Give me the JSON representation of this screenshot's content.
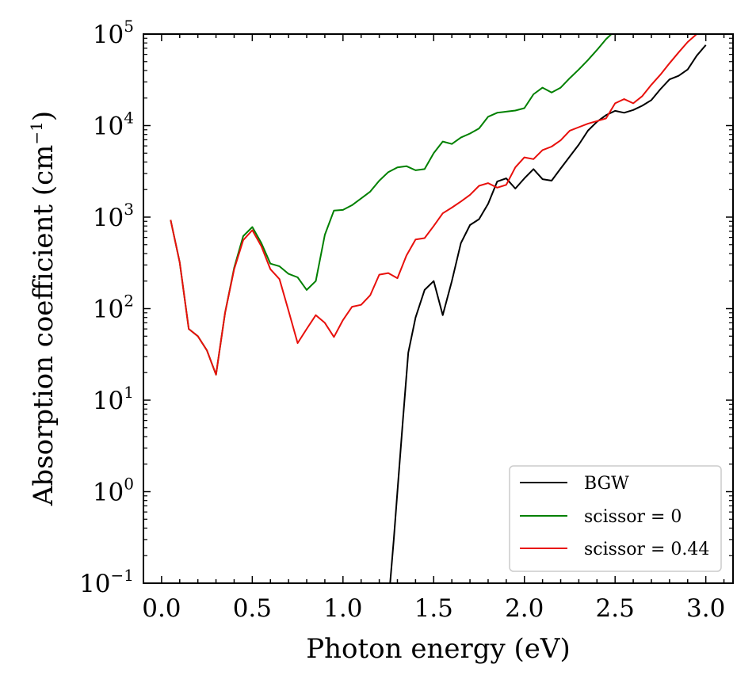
{
  "chart_data": {
    "type": "line",
    "xlabel": "Photon energy (eV)",
    "ylabel_main": "Absorption coefficient (cm",
    "ylabel_exp": "−1",
    "ylabel_close": ")",
    "xlim": [
      -0.1,
      3.15
    ],
    "ylim_log10": [
      -1,
      5
    ],
    "x_ticks": [
      {
        "value": 0.0,
        "label": "0.0"
      },
      {
        "value": 0.5,
        "label": "0.5"
      },
      {
        "value": 1.0,
        "label": "1.0"
      },
      {
        "value": 1.5,
        "label": "1.5"
      },
      {
        "value": 2.0,
        "label": "2.0"
      },
      {
        "value": 2.5,
        "label": "2.5"
      },
      {
        "value": 3.0,
        "label": "3.0"
      }
    ],
    "y_ticks": [
      {
        "exp": -1,
        "base": "10",
        "power": "−1"
      },
      {
        "exp": 0,
        "base": "10",
        "power": "0"
      },
      {
        "exp": 1,
        "base": "10",
        "power": "1"
      },
      {
        "exp": 2,
        "base": "10",
        "power": "2"
      },
      {
        "exp": 3,
        "base": "10",
        "power": "3"
      },
      {
        "exp": 4,
        "base": "10",
        "power": "4"
      },
      {
        "exp": 5,
        "base": "10",
        "power": "5"
      }
    ],
    "legend_position": "lower-right",
    "series": [
      {
        "name": "BGW",
        "color": "#000000",
        "x": [
          1.26,
          1.28,
          1.3,
          1.33,
          1.36,
          1.4,
          1.45,
          1.5,
          1.55,
          1.6,
          1.65,
          1.7,
          1.75,
          1.8,
          1.85,
          1.9,
          1.95,
          2.0,
          2.05,
          2.1,
          2.15,
          2.2,
          2.25,
          2.3,
          2.35,
          2.4,
          2.45,
          2.5,
          2.55,
          2.6,
          2.65,
          2.7,
          2.75,
          2.8,
          2.85,
          2.9,
          2.95,
          3.0
        ],
        "y": [
          0.1,
          0.3,
          1.0,
          6.0,
          33,
          80,
          160,
          200,
          85,
          200,
          520,
          820,
          950,
          1400,
          2450,
          2650,
          2050,
          2650,
          3350,
          2600,
          2500,
          3400,
          4600,
          6200,
          8800,
          11000,
          13000,
          14500,
          13800,
          14800,
          16500,
          19000,
          25000,
          32000,
          35000,
          41000,
          58000,
          76000
        ]
      },
      {
        "name": "scissor = 0",
        "color": "#008000",
        "x": [
          0.05,
          0.1,
          0.15,
          0.2,
          0.25,
          0.3,
          0.35,
          0.4,
          0.45,
          0.5,
          0.55,
          0.6,
          0.65,
          0.7,
          0.75,
          0.8,
          0.85,
          0.9,
          0.95,
          1.0,
          1.05,
          1.1,
          1.15,
          1.2,
          1.25,
          1.3,
          1.35,
          1.4,
          1.45,
          1.5,
          1.55,
          1.6,
          1.65,
          1.7,
          1.75,
          1.8,
          1.85,
          1.9,
          1.95,
          2.0,
          2.05,
          2.1,
          2.15,
          2.2,
          2.25,
          2.3,
          2.35,
          2.4,
          2.45,
          2.48
        ],
        "y": [
          930,
          320,
          60,
          50,
          35,
          19,
          90,
          280,
          620,
          780,
          520,
          310,
          290,
          240,
          220,
          160,
          200,
          640,
          1180,
          1200,
          1350,
          1600,
          1900,
          2500,
          3100,
          3500,
          3600,
          3250,
          3350,
          5000,
          6700,
          6300,
          7400,
          8200,
          9300,
          12500,
          13800,
          14200,
          14600,
          15500,
          22000,
          26000,
          23000,
          26000,
          33000,
          41000,
          52000,
          67000,
          88000,
          100000
        ]
      },
      {
        "name": "scissor = 0.44",
        "color": "#e8100c",
        "x": [
          0.05,
          0.1,
          0.15,
          0.2,
          0.25,
          0.3,
          0.35,
          0.4,
          0.45,
          0.5,
          0.55,
          0.6,
          0.65,
          0.7,
          0.75,
          0.8,
          0.85,
          0.9,
          0.95,
          1.0,
          1.05,
          1.1,
          1.15,
          1.2,
          1.25,
          1.3,
          1.35,
          1.4,
          1.45,
          1.5,
          1.55,
          1.6,
          1.65,
          1.7,
          1.75,
          1.8,
          1.85,
          1.9,
          1.95,
          2.0,
          2.05,
          2.1,
          2.15,
          2.2,
          2.25,
          2.3,
          2.35,
          2.4,
          2.45,
          2.5,
          2.55,
          2.6,
          2.65,
          2.7,
          2.75,
          2.8,
          2.85,
          2.9,
          2.95,
          3.0
        ],
        "y": [
          930,
          320,
          60,
          50,
          35,
          19,
          90,
          270,
          560,
          720,
          480,
          270,
          210,
          95,
          42,
          60,
          85,
          70,
          49,
          75,
          105,
          110,
          140,
          235,
          245,
          215,
          380,
          570,
          590,
          800,
          1100,
          1270,
          1480,
          1750,
          2200,
          2350,
          2100,
          2250,
          3500,
          4500,
          4300,
          5400,
          5900,
          6900,
          8800,
          9600,
          10500,
          11200,
          12000,
          17500,
          19500,
          17500,
          21000,
          28000,
          36000,
          48000,
          63000,
          82000,
          100000,
          100000
        ]
      }
    ]
  }
}
